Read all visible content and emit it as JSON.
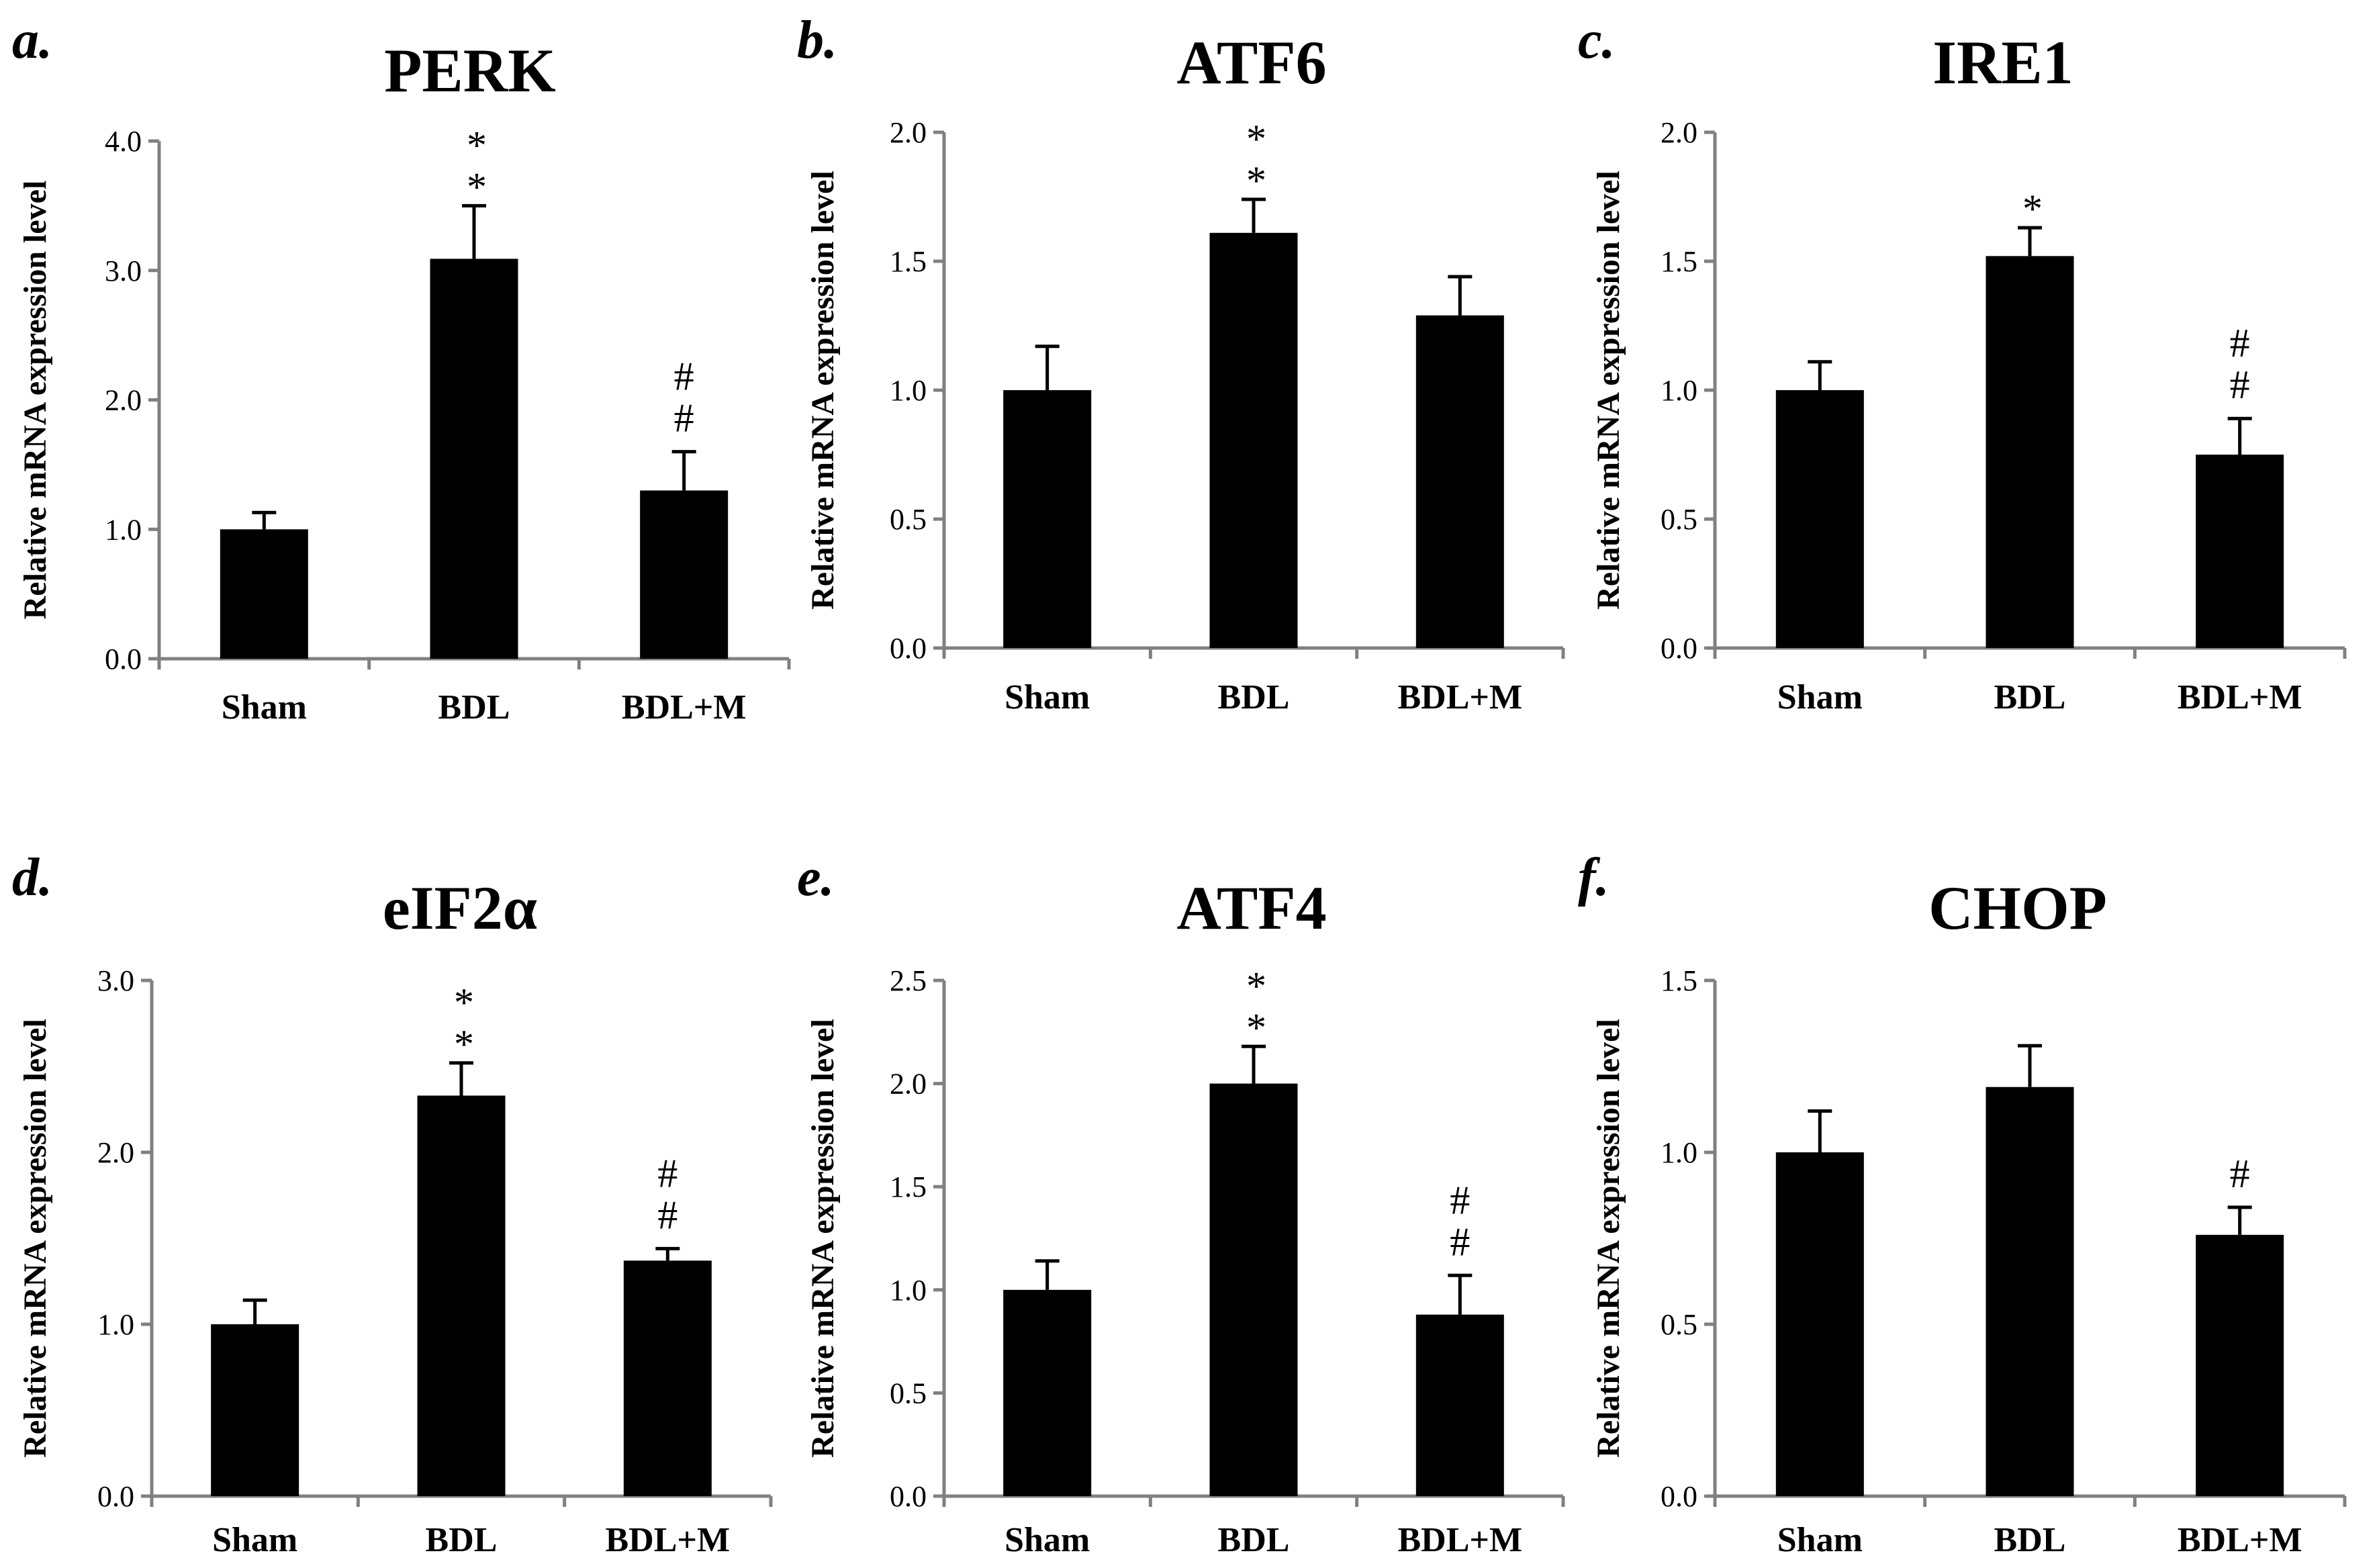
{
  "chart_data": [
    {
      "type": "bar",
      "panel": "a.",
      "title": "PERK",
      "ylabel": "Relative mRNA expression level",
      "xlabel": "",
      "categories": [
        "Sham",
        "BDL",
        "BDL+M"
      ],
      "values": [
        1.0,
        3.09,
        1.3
      ],
      "errors": [
        0.13,
        0.41,
        0.3
      ],
      "ylim": [
        0,
        4.0
      ],
      "yticks": [
        "0.0",
        "1.0",
        "2.0",
        "3.0",
        "4.0"
      ],
      "annotations": [
        [],
        [
          "*",
          "*"
        ],
        [
          "#",
          "#"
        ]
      ]
    },
    {
      "type": "bar",
      "panel": "b.",
      "title": "ATF6",
      "ylabel": "Relative mRNA expression level",
      "xlabel": "",
      "categories": [
        "Sham",
        "BDL",
        "BDL+M"
      ],
      "values": [
        1.0,
        1.61,
        1.29
      ],
      "errors": [
        0.17,
        0.13,
        0.15
      ],
      "ylim": [
        0,
        2.0
      ],
      "yticks": [
        "0.0",
        "0.5",
        "1.0",
        "1.5",
        "2.0"
      ],
      "annotations": [
        [],
        [
          "*",
          "*"
        ],
        []
      ]
    },
    {
      "type": "bar",
      "panel": "c.",
      "title": "IRE1",
      "ylabel": "Relative mRNA expression level",
      "xlabel": "",
      "categories": [
        "Sham",
        "BDL",
        "BDL+M"
      ],
      "values": [
        1.0,
        1.52,
        0.75
      ],
      "errors": [
        0.11,
        0.11,
        0.14
      ],
      "ylim": [
        0,
        2.0
      ],
      "yticks": [
        "0.0",
        "0.5",
        "1.0",
        "1.5",
        "2.0"
      ],
      "annotations": [
        [],
        [
          "*"
        ],
        [
          "#",
          "#"
        ]
      ]
    },
    {
      "type": "bar",
      "panel": "d.",
      "title": "eIF2α",
      "ylabel": "Relative mRNA expression level",
      "xlabel": "",
      "categories": [
        "Sham",
        "BDL",
        "BDL+M"
      ],
      "values": [
        1.0,
        2.33,
        1.37
      ],
      "errors": [
        0.14,
        0.19,
        0.07
      ],
      "ylim": [
        0,
        3.0
      ],
      "yticks": [
        "0.0",
        "1.0",
        "2.0",
        "3.0"
      ],
      "annotations": [
        [],
        [
          "*",
          "*"
        ],
        [
          "#",
          "#"
        ]
      ]
    },
    {
      "type": "bar",
      "panel": "e.",
      "title": "ATF4",
      "ylabel": "Relative mRNA expression level",
      "xlabel": "",
      "categories": [
        "Sham",
        "BDL",
        "BDL+M"
      ],
      "values": [
        1.0,
        2.0,
        0.88
      ],
      "errors": [
        0.14,
        0.18,
        0.19
      ],
      "ylim": [
        0,
        2.5
      ],
      "yticks": [
        "0.0",
        "0.5",
        "1.0",
        "1.5",
        "2.0",
        "2.5"
      ],
      "annotations": [
        [],
        [
          "*",
          "*"
        ],
        [
          "#",
          "#"
        ]
      ]
    },
    {
      "type": "bar",
      "panel": "f.",
      "title": "CHOP",
      "ylabel": "Relative mRNA expression level",
      "xlabel": "",
      "categories": [
        "Sham",
        "BDL",
        "BDL+M"
      ],
      "values": [
        1.0,
        1.19,
        0.76
      ],
      "errors": [
        0.12,
        0.12,
        0.08
      ],
      "ylim": [
        0,
        1.5
      ],
      "yticks": [
        "0.0",
        "0.5",
        "1.0",
        "1.5"
      ],
      "annotations": [
        [],
        [],
        [
          "#"
        ]
      ]
    }
  ],
  "colors": {
    "bar": "#000000",
    "axis": "#808080",
    "text": "#000000"
  }
}
